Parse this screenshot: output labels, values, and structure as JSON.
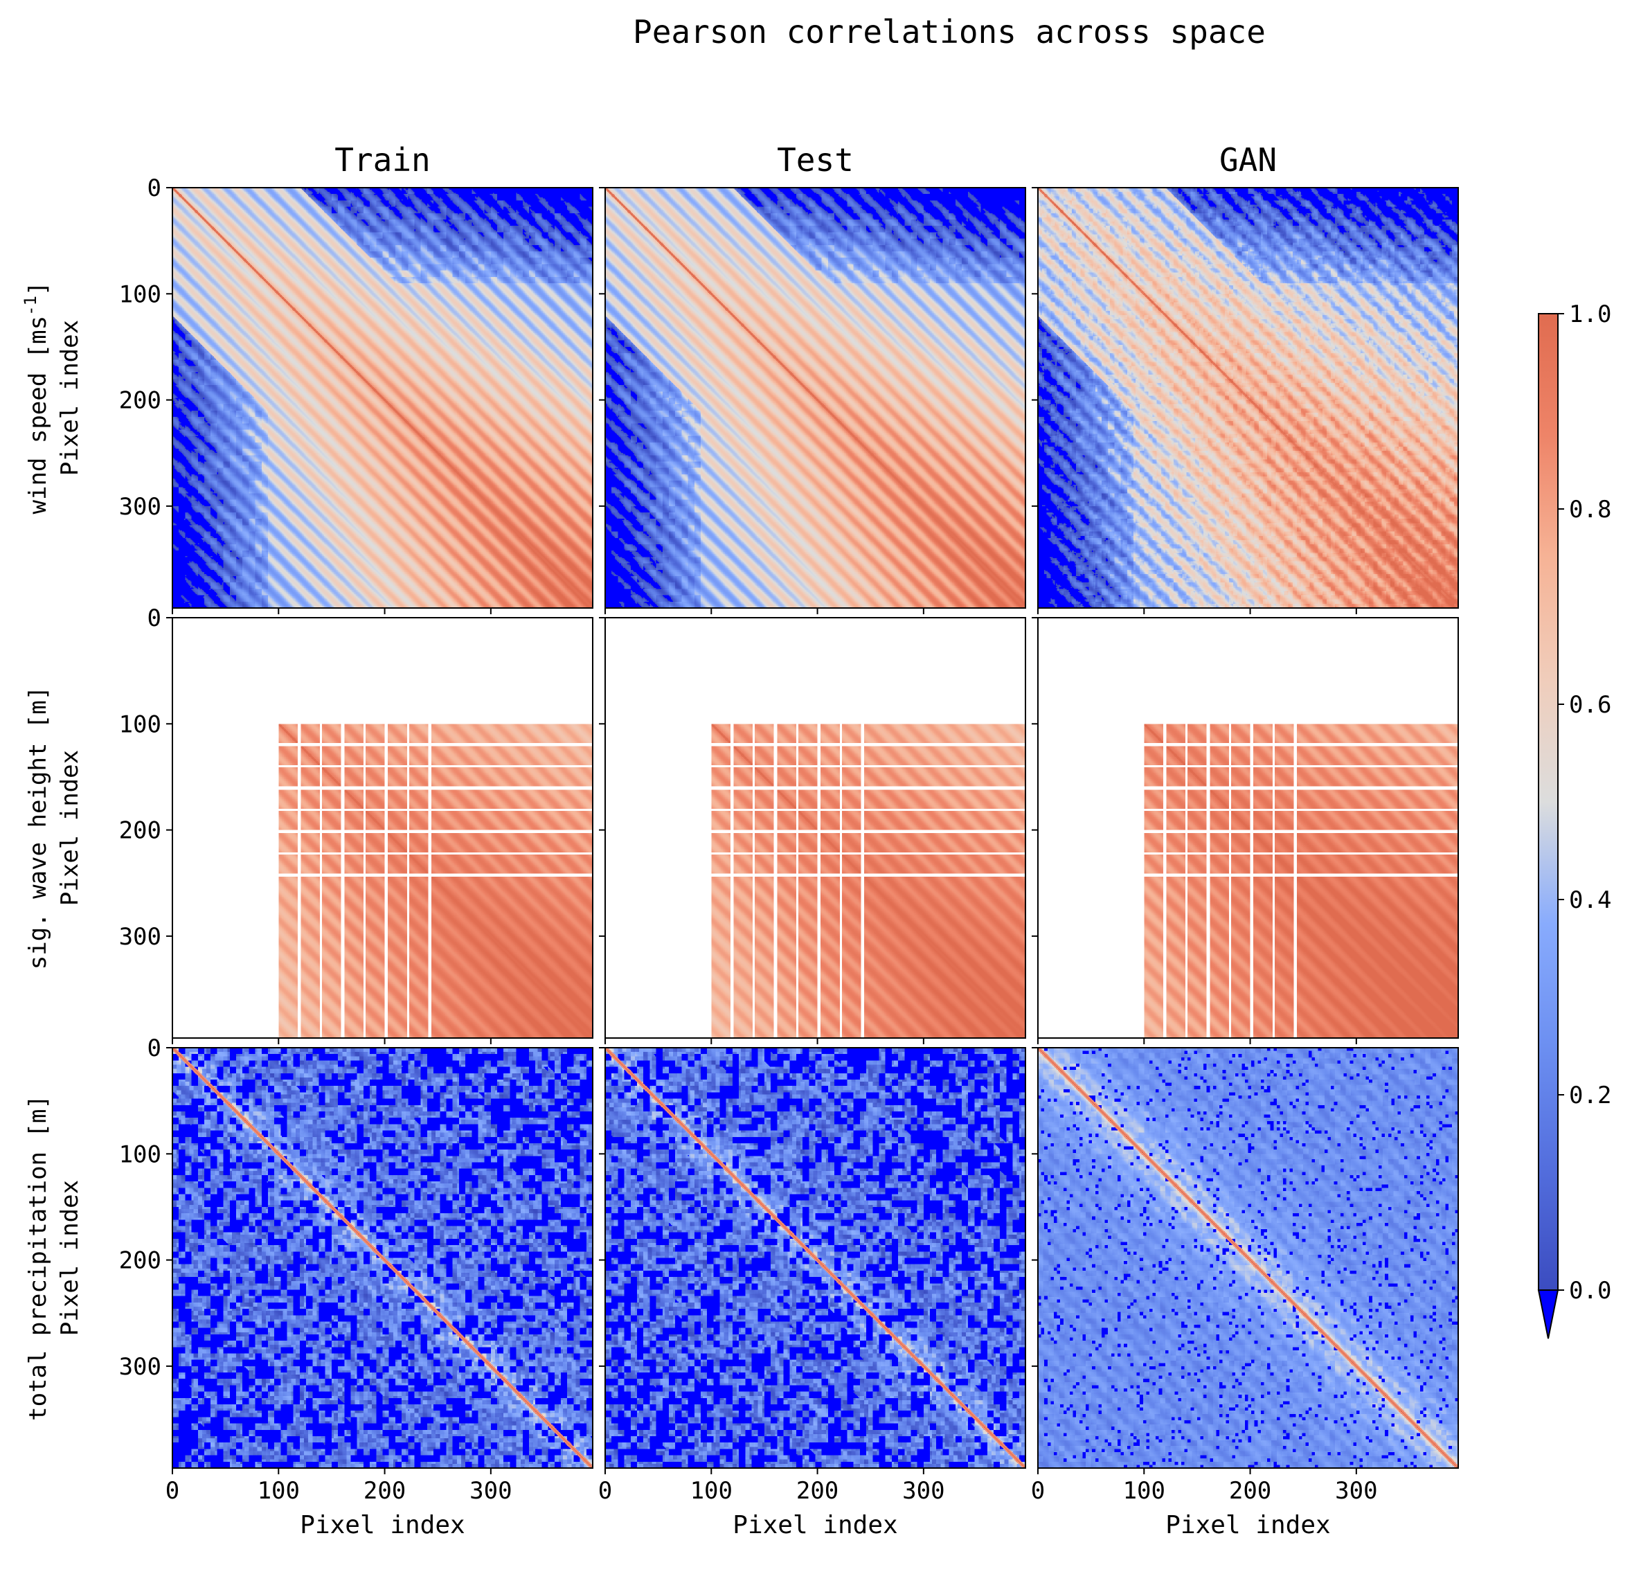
{
  "chart_data": {
    "type": "heatmap",
    "title": "Pearson correlations across space",
    "columns": [
      "Train",
      "Test",
      "GAN"
    ],
    "rows": [
      {
        "label": "wind speed [ms",
        "unit_superscript": "-1",
        "unit_close": "]",
        "id": "wind_speed"
      },
      {
        "label": "sig. wave height [m]",
        "unit_superscript": "",
        "unit_close": "",
        "id": "wave_height"
      },
      {
        "label": "total precipitation [m]",
        "unit_superscript": "",
        "unit_close": "",
        "id": "precipitation"
      }
    ],
    "axis_label": "Pixel index",
    "xlabel": "Pixel index",
    "ylabel": "Pixel index",
    "x_range": [
      0,
      396
    ],
    "y_range": [
      0,
      396
    ],
    "x_ticks": [
      0,
      100,
      200,
      300
    ],
    "y_ticks_first_row": [
      0,
      100,
      200,
      300
    ],
    "y_ticks_other_rows": [
      0,
      100,
      200,
      300
    ],
    "y_ticks_wave_row": [
      0,
      100,
      200,
      300
    ],
    "wave_row_valid_from_index": 100,
    "colorbar": {
      "min": 0.0,
      "max": 1.0,
      "ticks": [
        "0.0",
        "0.2",
        "0.4",
        "0.6",
        "0.8",
        "1.0"
      ],
      "colormap": "coolwarm",
      "under_color": "#0000ff",
      "extend": "min"
    },
    "panels": [
      {
        "row": "wind_speed",
        "column": "Train",
        "character": "block-periodic correlation, decreasing with distance from diagonal; strong negative (blue) regions in low-index columns and upper-right"
      },
      {
        "row": "wind_speed",
        "column": "Test",
        "character": "similar block structure to Train"
      },
      {
        "row": "wind_speed",
        "column": "GAN",
        "character": "similar block structure, noisier blue patches"
      },
      {
        "row": "wave_height",
        "column": "Train",
        "character": "undefined (white) for pixels below index 100; high correlations elsewhere"
      },
      {
        "row": "wave_height",
        "column": "Test",
        "character": "same mask as Train"
      },
      {
        "row": "wave_height",
        "column": "GAN",
        "character": "same mask as Train"
      },
      {
        "row": "precipitation",
        "column": "Train",
        "character": "low correlation with narrow diagonal; many blue (<0) patches"
      },
      {
        "row": "precipitation",
        "column": "Test",
        "character": "low correlation with narrow diagonal; many blue patches"
      },
      {
        "row": "precipitation",
        "column": "GAN",
        "character": "smoother, higher off-diagonal correlations; fewer blue patches"
      }
    ]
  }
}
